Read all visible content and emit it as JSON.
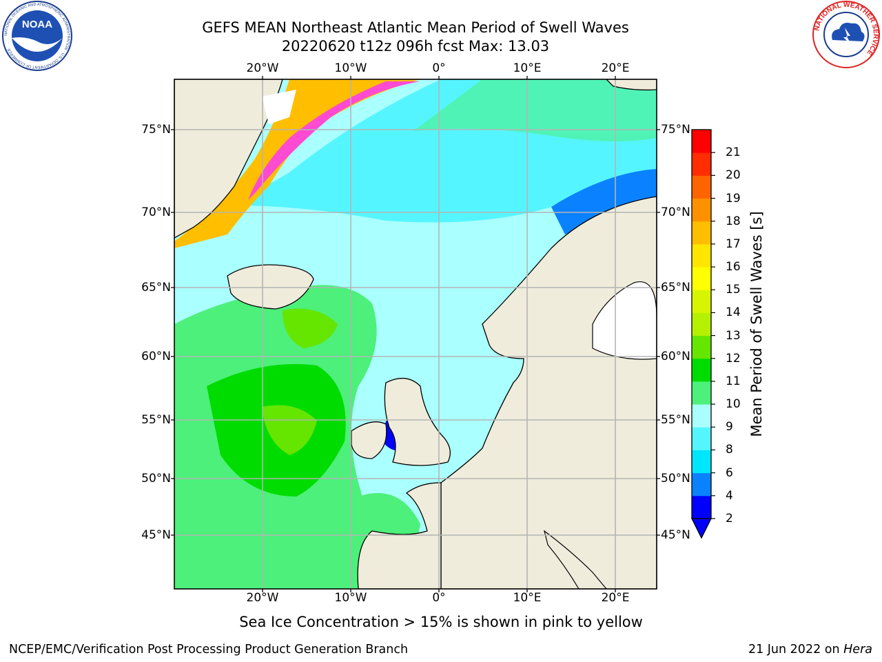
{
  "title": {
    "line1": "GEFS MEAN Northeast Atlantic Mean Period of Swell Waves",
    "line2": "20220620 t12z 096h fcst   Max: 13.03"
  },
  "logos": {
    "left": {
      "name": "noaa-logo",
      "text": "NOAA",
      "ring_text": "NATIONAL OCEANIC AND ATMOSPHERIC ADMINISTRATION · U.S. DEPARTMENT OF COMMERCE"
    },
    "right": {
      "name": "nws-logo",
      "ring_text": "NATIONAL WEATHER SERVICE"
    }
  },
  "map": {
    "longitude_labels": [
      "20°W",
      "10°W",
      "0°",
      "10°E",
      "20°E"
    ],
    "latitude_labels": [
      "75°N",
      "70°N",
      "65°N",
      "60°N",
      "55°N",
      "50°N",
      "45°N"
    ],
    "land_color": "#efecdc",
    "gridline_color": "#b4b4b4"
  },
  "colorbar": {
    "label": "Mean Period of Swell Waves [s]",
    "levels": [
      "2",
      "4",
      "6",
      "8",
      "9",
      "10",
      "11",
      "12",
      "13",
      "14",
      "15",
      "16",
      "17",
      "18",
      "19",
      "20",
      "21"
    ],
    "colors": [
      "#0000ff",
      "#0a82ff",
      "#00e6ff",
      "#55f5ff",
      "#aaffff",
      "#4cf07a",
      "#00dc00",
      "#64e600",
      "#b4f000",
      "#d8f500",
      "#ffff00",
      "#ffe600",
      "#ffbe00",
      "#ff9100",
      "#ff6400",
      "#ff2d00",
      "#ff0000"
    ],
    "extend_color": "#0000ff"
  },
  "footnote": "Sea Ice Concentration > 15% is shown in pink to yellow",
  "credit": {
    "left": "NCEP/EMC/Verification Post Processing Product Generation Branch",
    "right_date": "21 Jun 2022 on ",
    "right_machine": "Hera"
  }
}
